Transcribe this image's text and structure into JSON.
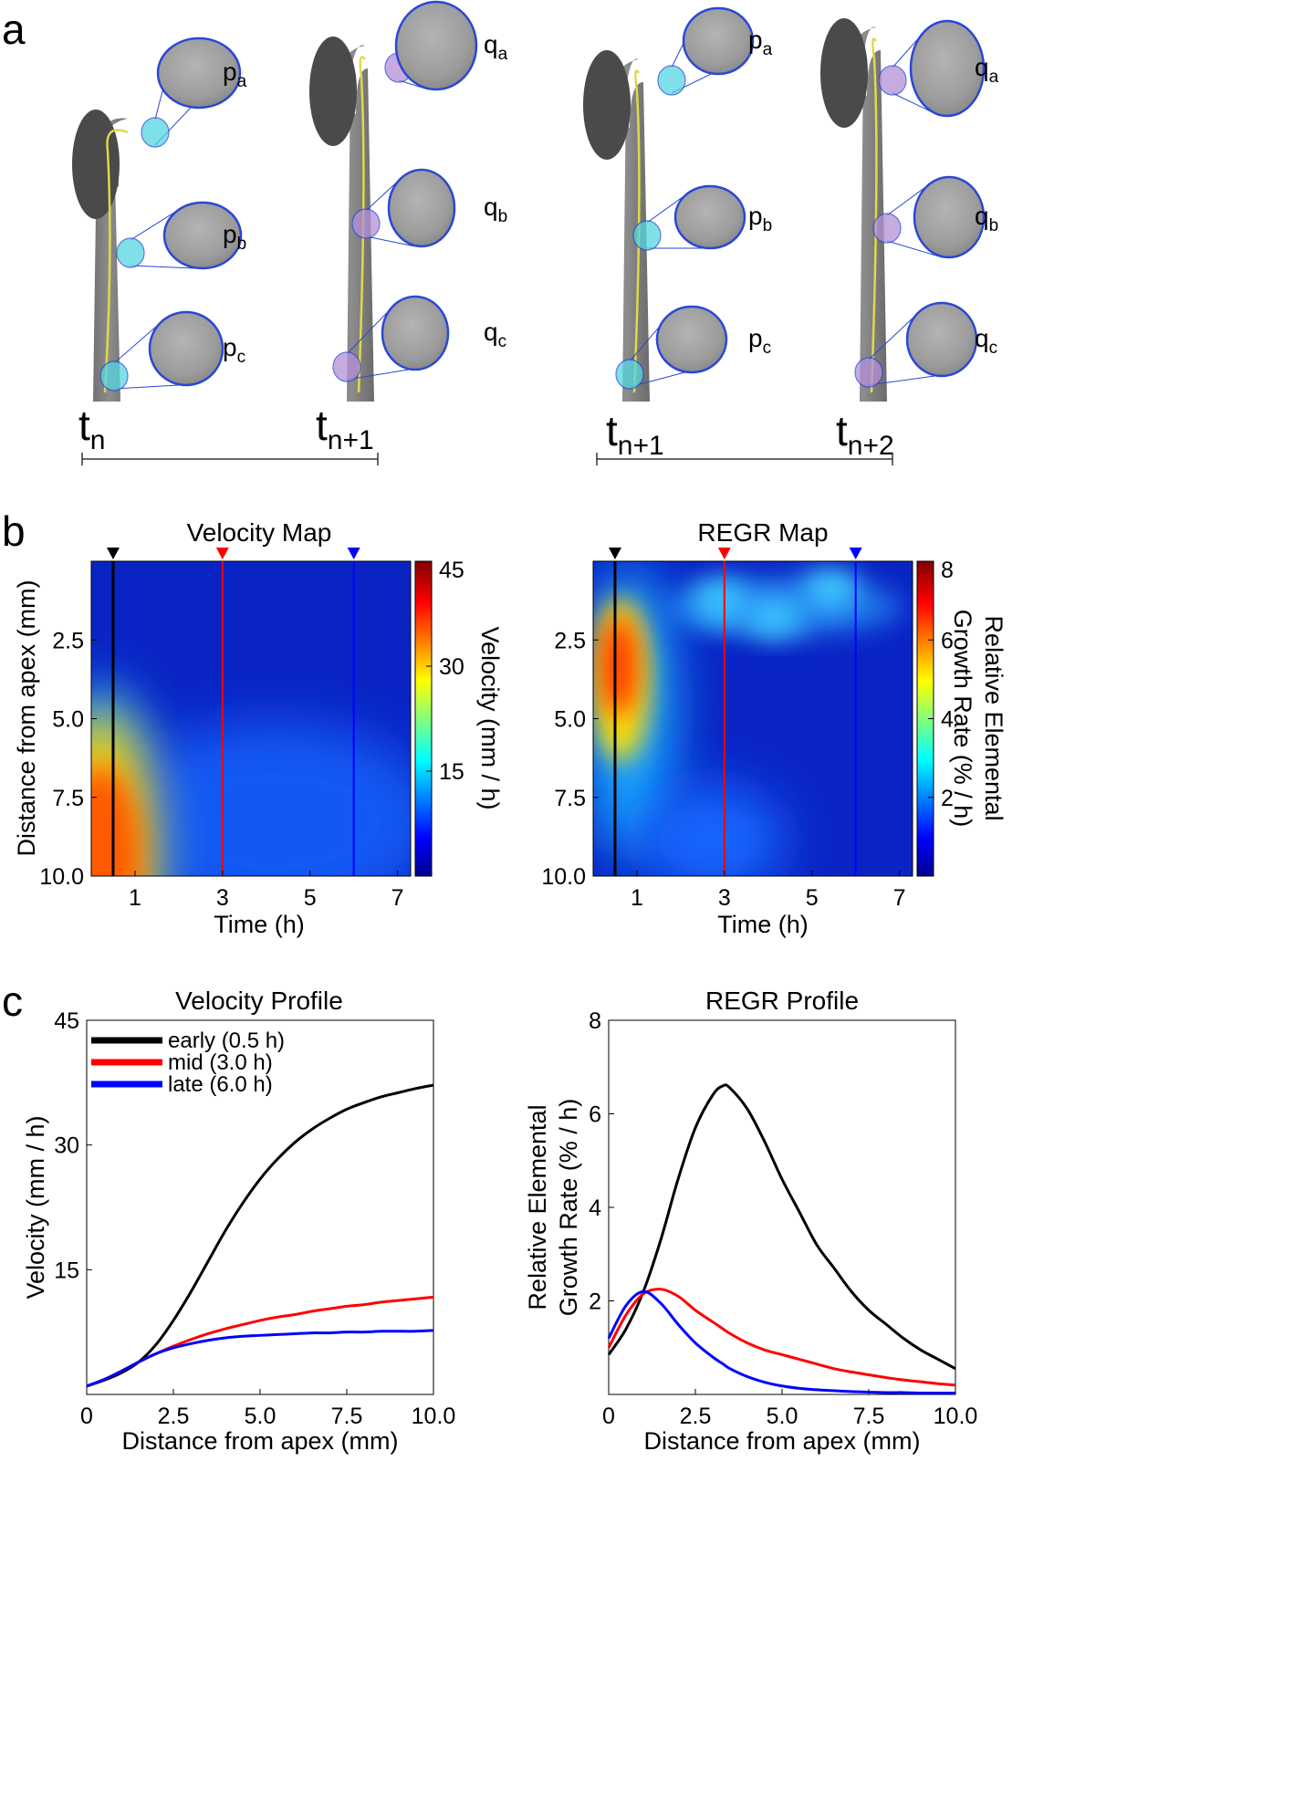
{
  "panels": {
    "a": {
      "letter": "a",
      "frames": [
        {
          "time_main": "t",
          "time_sub": "n",
          "circles": [
            {
              "main": "p",
              "sub": "a"
            },
            {
              "main": "p",
              "sub": "b"
            },
            {
              "main": "p",
              "sub": "c"
            }
          ],
          "marker": "cyan"
        },
        {
          "time_main": "t",
          "time_sub": "n+1",
          "circles": [
            {
              "main": "q",
              "sub": "a"
            },
            {
              "main": "q",
              "sub": "b"
            },
            {
              "main": "q",
              "sub": "c"
            }
          ],
          "marker": "purple"
        },
        {
          "time_main": "t",
          "time_sub": "n+1",
          "circles": [
            {
              "main": "p",
              "sub": "a"
            },
            {
              "main": "p",
              "sub": "b"
            },
            {
              "main": "p",
              "sub": "c"
            }
          ],
          "marker": "cyan"
        },
        {
          "time_main": "t",
          "time_sub": "n+2",
          "circles": [
            {
              "main": "q",
              "sub": "a"
            },
            {
              "main": "q",
              "sub": "b"
            },
            {
              "main": "q",
              "sub": "c"
            }
          ],
          "marker": "purple"
        }
      ]
    },
    "b": {
      "letter": "b"
    },
    "c": {
      "letter": "c"
    }
  },
  "colors": {
    "circle_stroke": "#2a47d6",
    "cyan_marker": "#55d6e0",
    "purple_marker": "#b48fd8",
    "midline": "#e0d84a",
    "early": "#000000",
    "mid": "#ff0000",
    "late": "#0000ff"
  },
  "chart_data": [
    {
      "id": "velocity_map",
      "type": "heatmap",
      "title": "Velocity Map",
      "xlabel": "Time (h)",
      "ylabel": "Distance from apex (mm)",
      "xticks": [
        "1",
        "3",
        "5",
        "7"
      ],
      "xtick_values": [
        1,
        3,
        5,
        7
      ],
      "yticks": [
        "2.5",
        "5.0",
        "7.5",
        "10.0"
      ],
      "ytick_values": [
        2.5,
        5.0,
        7.5,
        10.0
      ],
      "xlim": [
        0,
        7.3
      ],
      "ylim": [
        0,
        10
      ],
      "colorbar": {
        "label": "Velocity (mm / h)",
        "ticks": [
          "15",
          "30",
          "45"
        ],
        "tick_values": [
          15,
          30,
          45
        ],
        "range": [
          0,
          45
        ]
      },
      "time_markers": [
        {
          "name": "early",
          "time": 0.5,
          "color": "#000000"
        },
        {
          "name": "mid",
          "time": 3.0,
          "color": "#ff0000"
        },
        {
          "name": "late",
          "time": 6.0,
          "color": "#0000ff"
        }
      ]
    },
    {
      "id": "regr_map",
      "type": "heatmap",
      "title": "REGR Map",
      "xlabel": "Time (h)",
      "ylabel": "",
      "xticks": [
        "1",
        "3",
        "5",
        "7"
      ],
      "xtick_values": [
        1,
        3,
        5,
        7
      ],
      "yticks": [
        "2.5",
        "5.0",
        "7.5",
        "10.0"
      ],
      "ytick_values": [
        2.5,
        5.0,
        7.5,
        10.0
      ],
      "xlim": [
        0,
        7.3
      ],
      "ylim": [
        0,
        10
      ],
      "colorbar": {
        "label_lines": [
          "Relative Elemental",
          "Growth Rate (% / h)"
        ],
        "ticks": [
          "2",
          "4",
          "6",
          "8"
        ],
        "tick_values": [
          2,
          4,
          6,
          8
        ],
        "range": [
          0,
          8
        ]
      },
      "time_markers": [
        {
          "name": "early",
          "time": 0.5,
          "color": "#000000"
        },
        {
          "name": "mid",
          "time": 3.0,
          "color": "#ff0000"
        },
        {
          "name": "late",
          "time": 6.0,
          "color": "#0000ff"
        }
      ]
    },
    {
      "id": "velocity_profile",
      "type": "line",
      "title": "Velocity Profile",
      "xlabel": "Distance from apex (mm)",
      "ylabel": "Velocity (mm / h)",
      "xticks": [
        "0",
        "2.5",
        "5.0",
        "7.5",
        "10.0"
      ],
      "xtick_values": [
        0,
        2.5,
        5.0,
        7.5,
        10.0
      ],
      "yticks": [
        "15",
        "30",
        "45"
      ],
      "ytick_values": [
        15,
        30,
        45
      ],
      "xlim": [
        0,
        10
      ],
      "ylim": [
        0,
        45
      ],
      "legend": "top-left",
      "x": [
        0,
        0.5,
        1,
        1.5,
        2,
        2.5,
        3,
        3.5,
        4,
        4.5,
        5,
        5.5,
        6,
        6.5,
        7,
        7.5,
        8,
        8.5,
        9,
        9.5,
        10
      ],
      "series": [
        {
          "name": "early (0.5 h)",
          "color": "#000000",
          "values": [
            1.0,
            1.7,
            2.6,
            3.9,
            6.0,
            8.9,
            12.3,
            16.0,
            19.7,
            23.0,
            25.9,
            28.3,
            30.3,
            31.9,
            33.2,
            34.3,
            35.1,
            35.8,
            36.3,
            36.8,
            37.2
          ]
        },
        {
          "name": "mid (3.0 h)",
          "color": "#ff0000",
          "values": [
            1.0,
            1.8,
            2.8,
            3.9,
            4.9,
            5.8,
            6.6,
            7.3,
            7.9,
            8.4,
            8.9,
            9.3,
            9.6,
            10.0,
            10.3,
            10.6,
            10.8,
            11.1,
            11.3,
            11.5,
            11.7
          ]
        },
        {
          "name": "late (6.0 h)",
          "color": "#0000ff",
          "values": [
            1.0,
            1.8,
            2.8,
            3.9,
            4.9,
            5.6,
            6.1,
            6.5,
            6.8,
            7.0,
            7.1,
            7.2,
            7.3,
            7.4,
            7.4,
            7.5,
            7.5,
            7.6,
            7.6,
            7.6,
            7.7
          ]
        }
      ]
    },
    {
      "id": "regr_profile",
      "type": "line",
      "title": "REGR Profile",
      "xlabel": "Distance from apex (mm)",
      "ylabel_lines": [
        "Relative Elemental",
        "Growth Rate (% / h)"
      ],
      "xticks": [
        "0",
        "2.5",
        "5.0",
        "7.5",
        "10.0"
      ],
      "xtick_values": [
        0,
        2.5,
        5.0,
        7.5,
        10.0
      ],
      "yticks": [
        "2",
        "4",
        "6",
        "8"
      ],
      "ytick_values": [
        2,
        4,
        6,
        8
      ],
      "xlim": [
        0,
        10
      ],
      "ylim": [
        0,
        8
      ],
      "x": [
        0,
        0.5,
        1,
        1.5,
        2,
        2.5,
        3,
        3.3,
        3.5,
        4,
        4.5,
        5,
        5.5,
        6,
        6.5,
        7,
        7.5,
        8,
        8.5,
        9,
        9.5,
        10
      ],
      "series": [
        {
          "name": "early (0.5 h)",
          "color": "#000000",
          "values": [
            0.85,
            1.4,
            2.2,
            3.3,
            4.6,
            5.7,
            6.4,
            6.6,
            6.55,
            6.1,
            5.4,
            4.6,
            3.9,
            3.2,
            2.7,
            2.2,
            1.8,
            1.5,
            1.2,
            0.95,
            0.75,
            0.55
          ]
        },
        {
          "name": "mid (3.0 h)",
          "color": "#ff0000",
          "values": [
            1.0,
            1.7,
            2.15,
            2.25,
            2.1,
            1.8,
            1.55,
            1.4,
            1.3,
            1.1,
            0.95,
            0.85,
            0.75,
            0.65,
            0.55,
            0.48,
            0.42,
            0.36,
            0.31,
            0.27,
            0.23,
            0.2
          ]
        },
        {
          "name": "late (6.0 h)",
          "color": "#0000ff",
          "values": [
            1.2,
            1.9,
            2.2,
            1.95,
            1.5,
            1.1,
            0.8,
            0.65,
            0.55,
            0.38,
            0.26,
            0.18,
            0.13,
            0.1,
            0.08,
            0.06,
            0.05,
            0.04,
            0.04,
            0.03,
            0.03,
            0.03
          ]
        }
      ]
    }
  ]
}
